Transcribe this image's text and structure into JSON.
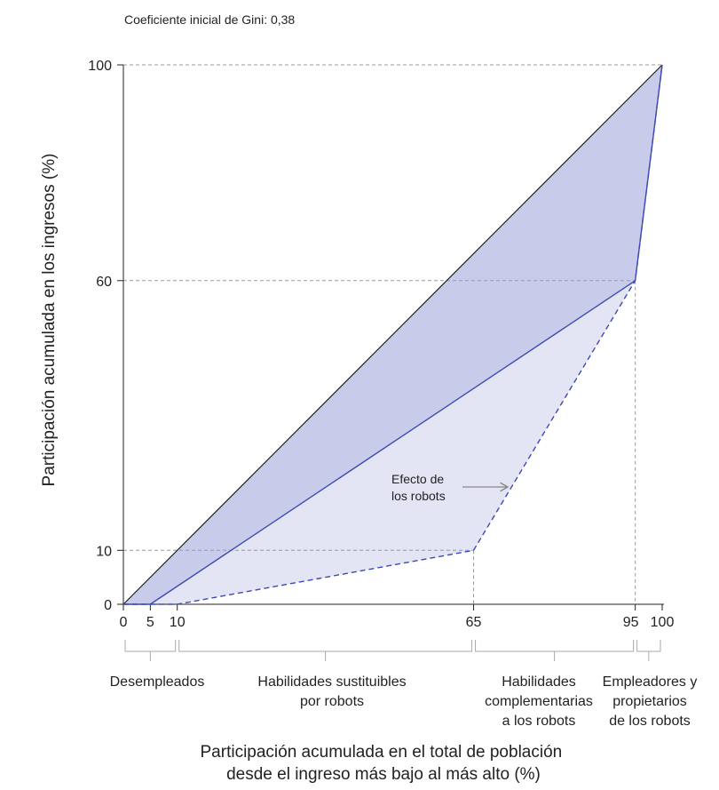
{
  "chart_data": {
    "type": "line",
    "note": "Coeficiente inicial de Gini: 0,38",
    "xlabel": [
      "Participación acumulada en el total de población",
      "desde el ingreso más bajo al más alto (%)"
    ],
    "ylabel": "Participación acumulada en los ingresos (%)",
    "xlim": [
      0,
      100
    ],
    "ylim": [
      0,
      100
    ],
    "x_ticks": [
      0,
      5,
      10,
      65,
      95,
      100
    ],
    "y_ticks": [
      0,
      10,
      60,
      100
    ],
    "grid": "dashed reference lines at tick values",
    "series": [
      {
        "style": "solid",
        "color": "#222222",
        "x": [
          0,
          100
        ],
        "y": [
          0,
          100
        ]
      },
      {
        "style": "solid",
        "color": "#3d4ab5",
        "x": [
          0,
          5,
          95,
          100
        ],
        "y": [
          0,
          0,
          60,
          100
        ]
      },
      {
        "style": "dashed",
        "color": "#3d4ab5",
        "x": [
          0,
          10,
          65,
          95,
          100
        ],
        "y": [
          0,
          0,
          10,
          60,
          100
        ]
      }
    ],
    "fills": {
      "upper": "#c8cbe9",
      "lower": "#e4e5f4"
    },
    "annotation": {
      "lines": [
        "Efecto de",
        "los robots"
      ]
    },
    "groups": [
      {
        "range": [
          0,
          10
        ],
        "lines": [
          "Desempleados"
        ]
      },
      {
        "range": [
          10,
          65
        ],
        "lines": [
          "Habilidades sustituibles",
          "por robots"
        ]
      },
      {
        "range": [
          65,
          95
        ],
        "lines": [
          "Habilidades",
          "complementarias",
          "a los robots"
        ]
      },
      {
        "range": [
          95,
          100
        ],
        "lines": [
          "Empleadores y",
          "propietarios",
          "de los robots"
        ]
      }
    ]
  }
}
